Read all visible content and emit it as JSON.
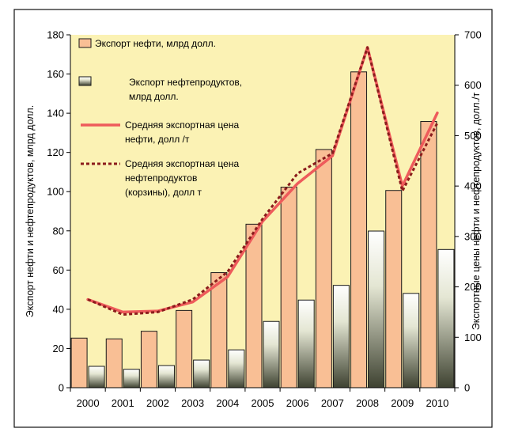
{
  "chart_data": {
    "type": "bar",
    "categories": [
      "2000",
      "2001",
      "2002",
      "2003",
      "2004",
      "2005",
      "2006",
      "2007",
      "2008",
      "2009",
      "2010"
    ],
    "series": [
      {
        "name": "Экспорт нефти, млрд долл.",
        "type": "bar",
        "axis": "left",
        "color": "#f9bf95",
        "values": [
          25.3,
          24.9,
          28.8,
          39.4,
          58.7,
          83.4,
          102.3,
          121.5,
          161.1,
          100.6,
          135.8
        ]
      },
      {
        "name": "Экспорт нефтепродуктов, млрд долл.",
        "type": "bar",
        "axis": "left",
        "color_top": "#ffffff",
        "color_bottom": "#3e4231",
        "values": [
          10.9,
          9.4,
          11.3,
          14.1,
          19.3,
          33.8,
          44.7,
          52.2,
          79.9,
          48.1,
          70.5
        ]
      },
      {
        "name": "Средняя экспортная цена нефти, долл /т",
        "type": "line",
        "axis": "right",
        "color": "#ee5b5b",
        "style": "solid",
        "values": [
          175,
          150,
          152,
          170,
          220,
          330,
          405,
          460,
          675,
          400,
          545
        ]
      },
      {
        "name": "Средняя экспортная цена нефтепродуктов (корзины), долл т",
        "type": "line",
        "axis": "right",
        "color": "#8b1c1c",
        "style": "dotted",
        "values": [
          175,
          145,
          150,
          175,
          230,
          335,
          425,
          465,
          675,
          390,
          525
        ]
      }
    ],
    "legend_labels": [
      [
        "Экспорт нефти, млрд долл."
      ],
      [
        "Экспорт нефтепродуктов,",
        "млрд долл."
      ],
      [
        "Средняя экспортная цена",
        "нефти, долл /т"
      ],
      [
        "Средняя экспортная цена",
        "нефтепродуктов",
        "(корзины), долл  т"
      ]
    ],
    "y_left": {
      "label": "Экспорт нефти и нефтепродуктов, млрд долл.",
      "min": 0,
      "max": 180,
      "ticks": [
        0,
        20,
        40,
        60,
        80,
        100,
        120,
        140,
        160,
        180
      ]
    },
    "y_right": {
      "label": "Экспортные цены нефти и нефтепродуктов, долл./т",
      "min": 0,
      "max": 700,
      "ticks": [
        0,
        100,
        200,
        300,
        400,
        500,
        600,
        700
      ]
    },
    "plot_background": "#fbf2b4",
    "legend_position": "top-left",
    "grid": false
  }
}
